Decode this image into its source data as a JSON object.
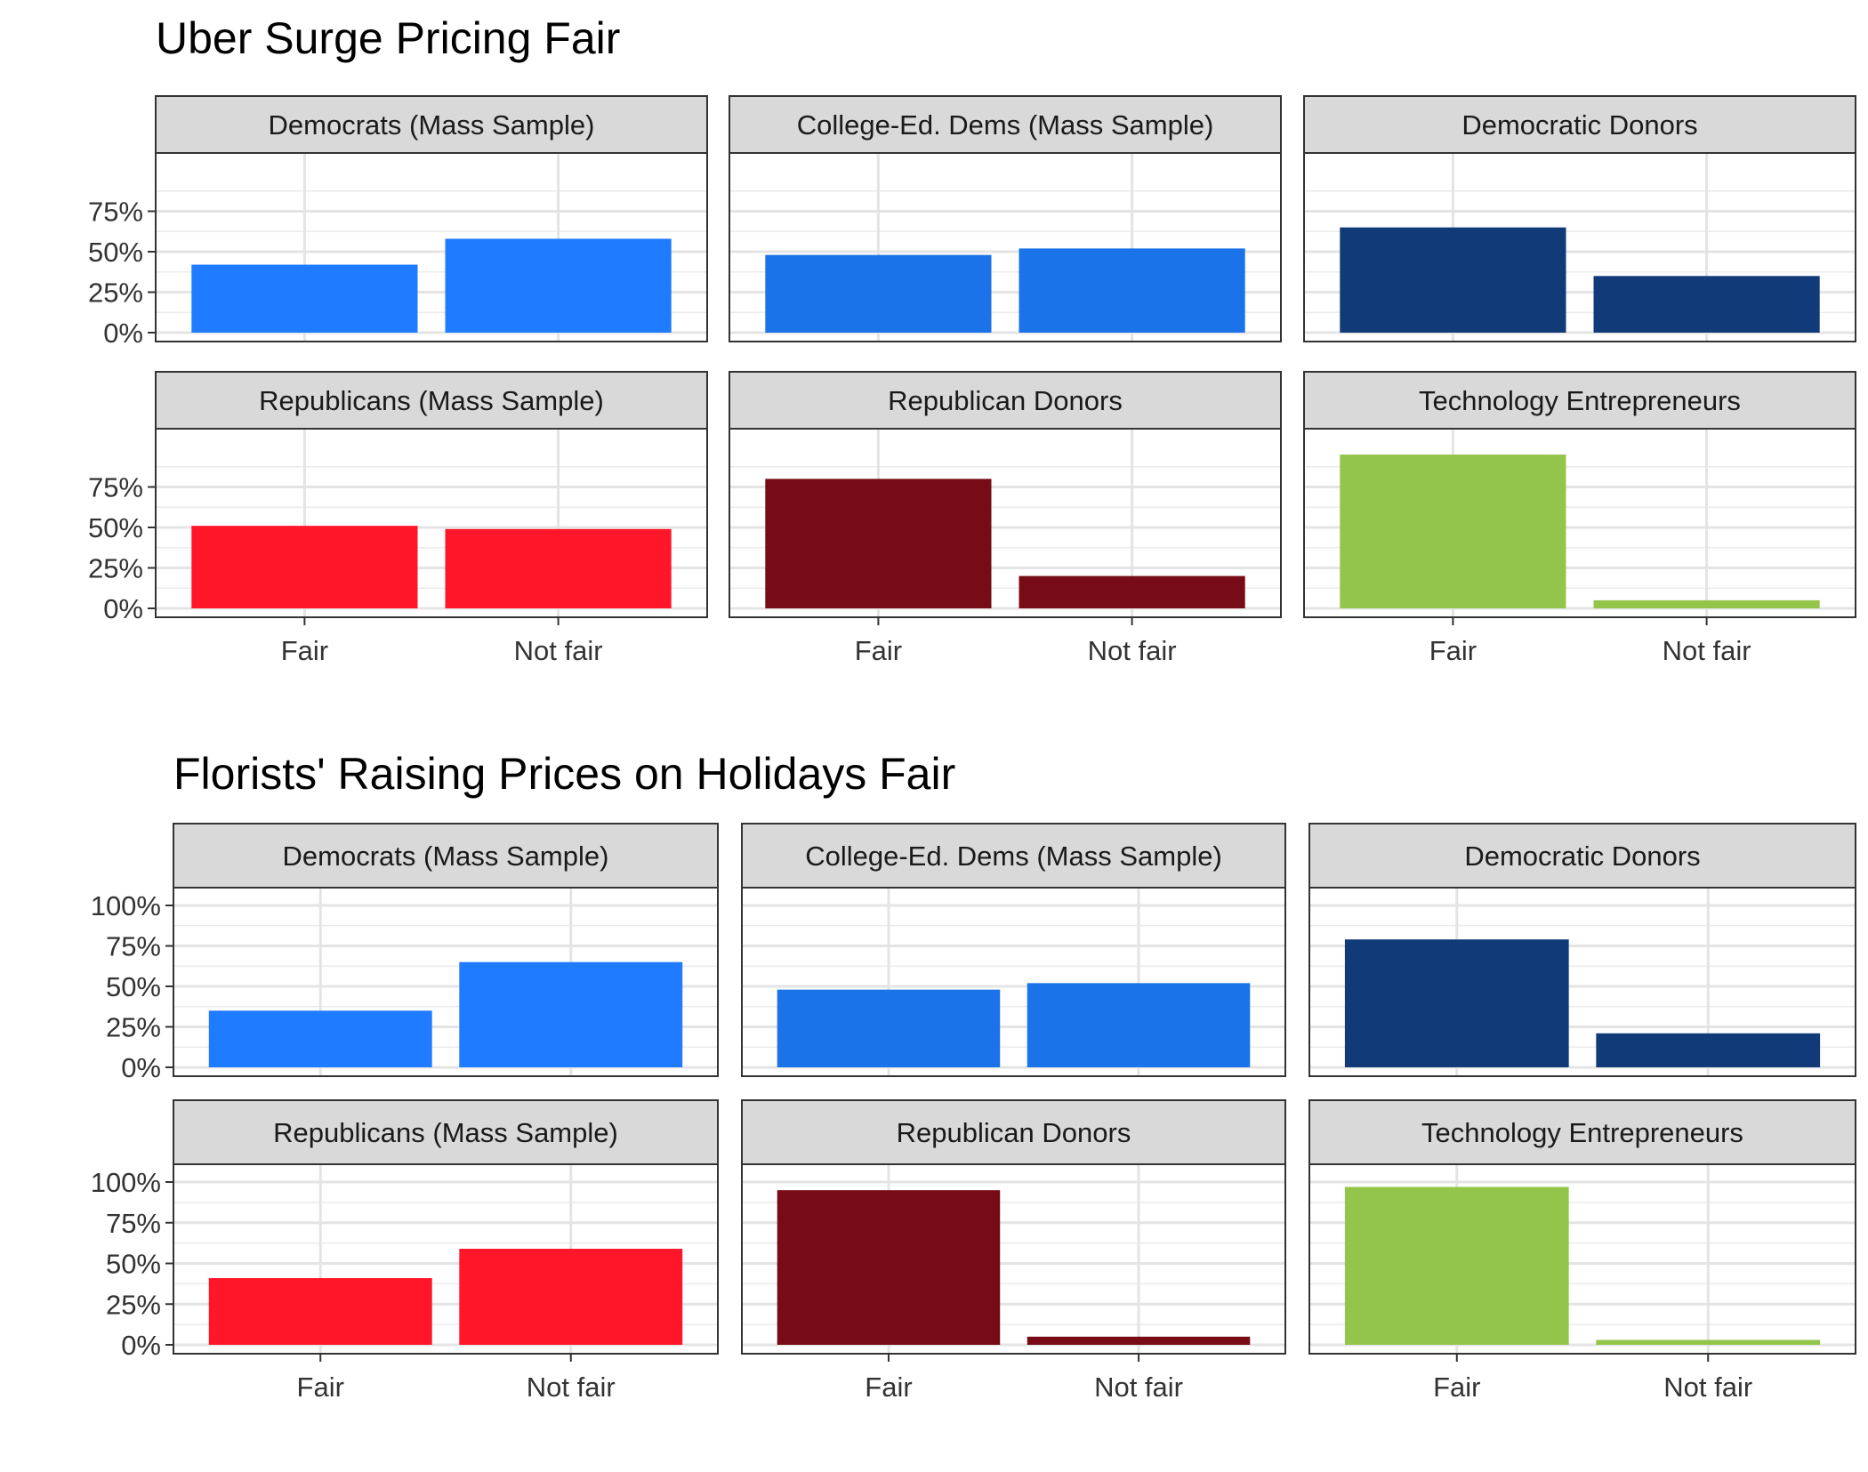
{
  "chart_data": [
    {
      "type": "bar",
      "title": "Uber Surge Pricing Fair",
      "xlabel": "",
      "ylabel": "",
      "categories": [
        "Fair",
        "Not fair"
      ],
      "y_ticks": [
        "0%",
        "25%",
        "50%",
        "75%"
      ],
      "ylim": [
        0,
        100
      ],
      "grid": true,
      "facets": [
        {
          "label": "Democrats (Mass Sample)",
          "color": "#1f7bff",
          "values": [
            42,
            58
          ]
        },
        {
          "label": "College-Ed. Dems (Mass Sample)",
          "color": "#1a73e8",
          "values": [
            48,
            52
          ]
        },
        {
          "label": "Democratic Donors",
          "color": "#103a78",
          "values": [
            65,
            35
          ]
        },
        {
          "label": "Republicans (Mass Sample)",
          "color": "#ff1628",
          "values": [
            51,
            49
          ]
        },
        {
          "label": "Republican Donors",
          "color": "#770c16",
          "values": [
            80,
            20
          ]
        },
        {
          "label": "Technology Entrepreneurs",
          "color": "#93c54b",
          "values": [
            95,
            5
          ]
        }
      ]
    },
    {
      "type": "bar",
      "title": "Florists' Raising Prices on Holidays Fair",
      "xlabel": "",
      "ylabel": "",
      "categories": [
        "Fair",
        "Not fair"
      ],
      "y_ticks": [
        "0%",
        "25%",
        "50%",
        "75%",
        "100%"
      ],
      "ylim": [
        0,
        100
      ],
      "grid": true,
      "facets": [
        {
          "label": "Democrats (Mass Sample)",
          "color": "#1f7bff",
          "values": [
            35,
            65
          ]
        },
        {
          "label": "College-Ed. Dems (Mass Sample)",
          "color": "#1a73e8",
          "values": [
            48,
            52
          ]
        },
        {
          "label": "Democratic Donors",
          "color": "#103a78",
          "values": [
            79,
            21
          ]
        },
        {
          "label": "Republicans (Mass Sample)",
          "color": "#ff1628",
          "values": [
            41,
            59
          ]
        },
        {
          "label": "Republican Donors",
          "color": "#770c16",
          "values": [
            95,
            5
          ]
        },
        {
          "label": "Technology Entrepreneurs",
          "color": "#93c54b",
          "values": [
            97,
            3
          ]
        }
      ]
    }
  ]
}
